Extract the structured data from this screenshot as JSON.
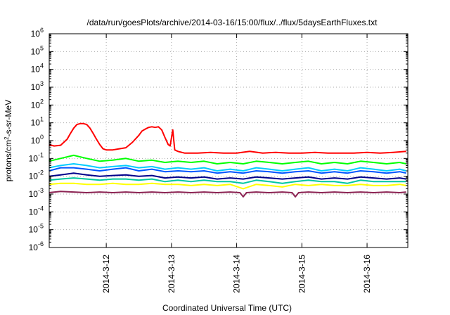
{
  "chart_data": {
    "type": "line",
    "title": "/data/run/goesPlots/archive/2014-03-16/15:00/flux/../flux/5daysEarthFluxes.txt",
    "xlabel": "Coordinated Universal Time (UTC)",
    "ylabel": {
      "pre": "protons/cm",
      "sup": "2",
      "post": "-s-sr-MeV"
    },
    "y_scale": "log",
    "ylim_exponents": [
      -6,
      6
    ],
    "y_ticks": [
      {
        "base": "10",
        "exp": "-6"
      },
      {
        "base": "10",
        "exp": "-5"
      },
      {
        "base": "10",
        "exp": "-4"
      },
      {
        "base": "10",
        "exp": "-3"
      },
      {
        "base": "10",
        "exp": "-2"
      },
      {
        "base": "10",
        "exp": "-1"
      },
      {
        "base": "10",
        "exp": "0"
      },
      {
        "base": "10",
        "exp": "1"
      },
      {
        "base": "10",
        "exp": "2"
      },
      {
        "base": "10",
        "exp": "3"
      },
      {
        "base": "10",
        "exp": "4"
      },
      {
        "base": "10",
        "exp": "5"
      },
      {
        "base": "10",
        "exp": "6"
      }
    ],
    "x_range_days": [
      "2014-03-11 03:00",
      "2014-03-16 15:00"
    ],
    "x_ticks": [
      "2014-3-12",
      "2014-3-13",
      "2014-3-14",
      "2014-3-15",
      "2014-3-16"
    ],
    "grid": true,
    "series": [
      {
        "color": "#ff0000",
        "x": [
          11.12,
          11.2,
          11.3,
          11.4,
          11.45,
          11.5,
          11.55,
          11.6,
          11.65,
          11.7,
          11.75,
          11.8,
          11.85,
          11.9,
          11.95,
          12.0,
          12.1,
          12.2,
          12.3,
          12.4,
          12.5,
          12.55,
          12.6,
          12.65,
          12.7,
          12.75,
          12.8,
          12.85,
          12.9,
          12.95,
          12.98,
          13.02,
          13.05,
          13.1,
          13.2,
          13.4,
          13.6,
          13.8,
          14.0,
          14.2,
          14.4,
          14.6,
          14.8,
          15.0,
          15.2,
          15.4,
          15.6,
          15.8,
          16.0,
          16.2,
          16.4,
          16.6
        ],
        "y": [
          0.6,
          0.5,
          0.55,
          1.2,
          2.5,
          5,
          8,
          9,
          9,
          8,
          5,
          2.5,
          1.2,
          0.6,
          0.35,
          0.3,
          0.3,
          0.35,
          0.4,
          0.8,
          2,
          3.5,
          4.5,
          5.5,
          6,
          5.5,
          6,
          4,
          1.5,
          0.6,
          0.5,
          4,
          0.3,
          0.25,
          0.2,
          0.2,
          0.22,
          0.2,
          0.2,
          0.25,
          0.2,
          0.22,
          0.2,
          0.2,
          0.22,
          0.2,
          0.2,
          0.2,
          0.22,
          0.2,
          0.22,
          0.25
        ]
      },
      {
        "color": "#00ff00",
        "x": [
          11.12,
          11.3,
          11.5,
          11.7,
          11.9,
          12.1,
          12.3,
          12.5,
          12.7,
          12.9,
          13.1,
          13.3,
          13.5,
          13.7,
          13.9,
          14.1,
          14.3,
          14.5,
          14.7,
          14.9,
          15.1,
          15.3,
          15.5,
          15.7,
          15.9,
          16.1,
          16.3,
          16.5,
          16.6
        ],
        "y": [
          0.07,
          0.1,
          0.15,
          0.1,
          0.07,
          0.08,
          0.1,
          0.07,
          0.08,
          0.06,
          0.07,
          0.06,
          0.07,
          0.05,
          0.06,
          0.05,
          0.07,
          0.06,
          0.05,
          0.06,
          0.07,
          0.05,
          0.06,
          0.05,
          0.07,
          0.06,
          0.05,
          0.06,
          0.05
        ]
      },
      {
        "color": "#00ccff",
        "x": [
          11.12,
          11.3,
          11.5,
          11.7,
          11.9,
          12.1,
          12.3,
          12.5,
          12.7,
          12.9,
          13.1,
          13.3,
          13.5,
          13.7,
          13.9,
          14.1,
          14.3,
          14.5,
          14.7,
          14.9,
          15.1,
          15.3,
          15.5,
          15.7,
          15.9,
          16.1,
          16.3,
          16.5,
          16.6
        ],
        "y": [
          0.03,
          0.04,
          0.05,
          0.04,
          0.03,
          0.035,
          0.04,
          0.03,
          0.035,
          0.025,
          0.03,
          0.025,
          0.03,
          0.02,
          0.025,
          0.02,
          0.03,
          0.025,
          0.02,
          0.025,
          0.03,
          0.02,
          0.025,
          0.02,
          0.03,
          0.025,
          0.02,
          0.025,
          0.02
        ]
      },
      {
        "color": "#0055ff",
        "x": [
          11.12,
          11.3,
          11.5,
          11.7,
          11.9,
          12.1,
          12.3,
          12.5,
          12.7,
          12.9,
          13.1,
          13.3,
          13.5,
          13.7,
          13.9,
          14.1,
          14.3,
          14.5,
          14.7,
          14.9,
          15.1,
          15.3,
          15.5,
          15.7,
          15.9,
          16.1,
          16.3,
          16.5,
          16.6
        ],
        "y": [
          0.02,
          0.03,
          0.03,
          0.025,
          0.02,
          0.025,
          0.03,
          0.02,
          0.025,
          0.018,
          0.02,
          0.018,
          0.02,
          0.015,
          0.018,
          0.015,
          0.02,
          0.018,
          0.015,
          0.018,
          0.02,
          0.015,
          0.018,
          0.015,
          0.02,
          0.018,
          0.015,
          0.018,
          0.015
        ]
      },
      {
        "color": "#00008b",
        "x": [
          11.12,
          11.3,
          11.5,
          11.7,
          11.9,
          12.1,
          12.3,
          12.5,
          12.7,
          12.9,
          13.1,
          13.3,
          13.5,
          13.7,
          13.9,
          14.1,
          14.3,
          14.5,
          14.7,
          14.9,
          15.1,
          15.3,
          15.5,
          15.7,
          15.9,
          16.1,
          16.3,
          16.5,
          16.6
        ],
        "y": [
          0.01,
          0.012,
          0.015,
          0.012,
          0.01,
          0.011,
          0.012,
          0.01,
          0.011,
          0.008,
          0.009,
          0.008,
          0.009,
          0.007,
          0.008,
          0.007,
          0.009,
          0.008,
          0.007,
          0.008,
          0.009,
          0.007,
          0.008,
          0.007,
          0.009,
          0.008,
          0.007,
          0.008,
          0.007
        ]
      },
      {
        "color": "#00c8a0",
        "x": [
          11.12,
          11.3,
          11.5,
          11.7,
          11.9,
          12.1,
          12.3,
          12.5,
          12.7,
          12.9,
          13.1,
          13.3,
          13.5,
          13.7,
          13.9,
          14.1,
          14.3,
          14.5,
          14.7,
          14.9,
          15.1,
          15.3,
          15.5,
          15.7,
          15.9,
          16.1,
          16.3,
          16.5,
          16.6
        ],
        "y": [
          0.006,
          0.007,
          0.008,
          0.007,
          0.006,
          0.007,
          0.007,
          0.006,
          0.007,
          0.005,
          0.006,
          0.005,
          0.006,
          0.005,
          0.005,
          0.004,
          0.006,
          0.005,
          0.004,
          0.005,
          0.006,
          0.005,
          0.005,
          0.004,
          0.006,
          0.005,
          0.005,
          0.005,
          0.005
        ]
      },
      {
        "color": "#ffff00",
        "x": [
          11.12,
          11.3,
          11.5,
          11.7,
          11.9,
          12.1,
          12.3,
          12.5,
          12.7,
          12.9,
          13.1,
          13.3,
          13.5,
          13.7,
          13.9,
          14.1,
          14.3,
          14.5,
          14.7,
          14.9,
          15.1,
          15.3,
          15.5,
          15.7,
          15.9,
          16.1,
          16.3,
          16.5,
          16.6
        ],
        "y": [
          0.0035,
          0.004,
          0.004,
          0.0035,
          0.0035,
          0.004,
          0.0035,
          0.0035,
          0.004,
          0.0035,
          0.0035,
          0.003,
          0.0035,
          0.003,
          0.0035,
          0.002,
          0.0035,
          0.003,
          0.0025,
          0.0035,
          0.003,
          0.0035,
          0.003,
          0.003,
          0.0035,
          0.003,
          0.003,
          0.0035,
          0.003
        ]
      },
      {
        "color": "#8b2252",
        "x": [
          11.12,
          11.3,
          11.5,
          11.7,
          11.9,
          12.1,
          12.3,
          12.5,
          12.7,
          12.9,
          13.1,
          13.3,
          13.5,
          13.7,
          13.9,
          14.05,
          14.1,
          14.15,
          14.3,
          14.5,
          14.7,
          14.85,
          14.9,
          14.95,
          15.1,
          15.3,
          15.5,
          15.7,
          15.9,
          16.1,
          16.3,
          16.5,
          16.6
        ],
        "y": [
          0.0012,
          0.0014,
          0.0013,
          0.0012,
          0.0013,
          0.0012,
          0.0013,
          0.0012,
          0.0013,
          0.0012,
          0.0013,
          0.0012,
          0.0013,
          0.0012,
          0.0013,
          0.0012,
          0.0007,
          0.0012,
          0.0013,
          0.0012,
          0.0013,
          0.0012,
          0.0007,
          0.0012,
          0.0013,
          0.0012,
          0.0013,
          0.0012,
          0.0013,
          0.0012,
          0.0013,
          0.0012,
          0.0013
        ]
      }
    ]
  }
}
